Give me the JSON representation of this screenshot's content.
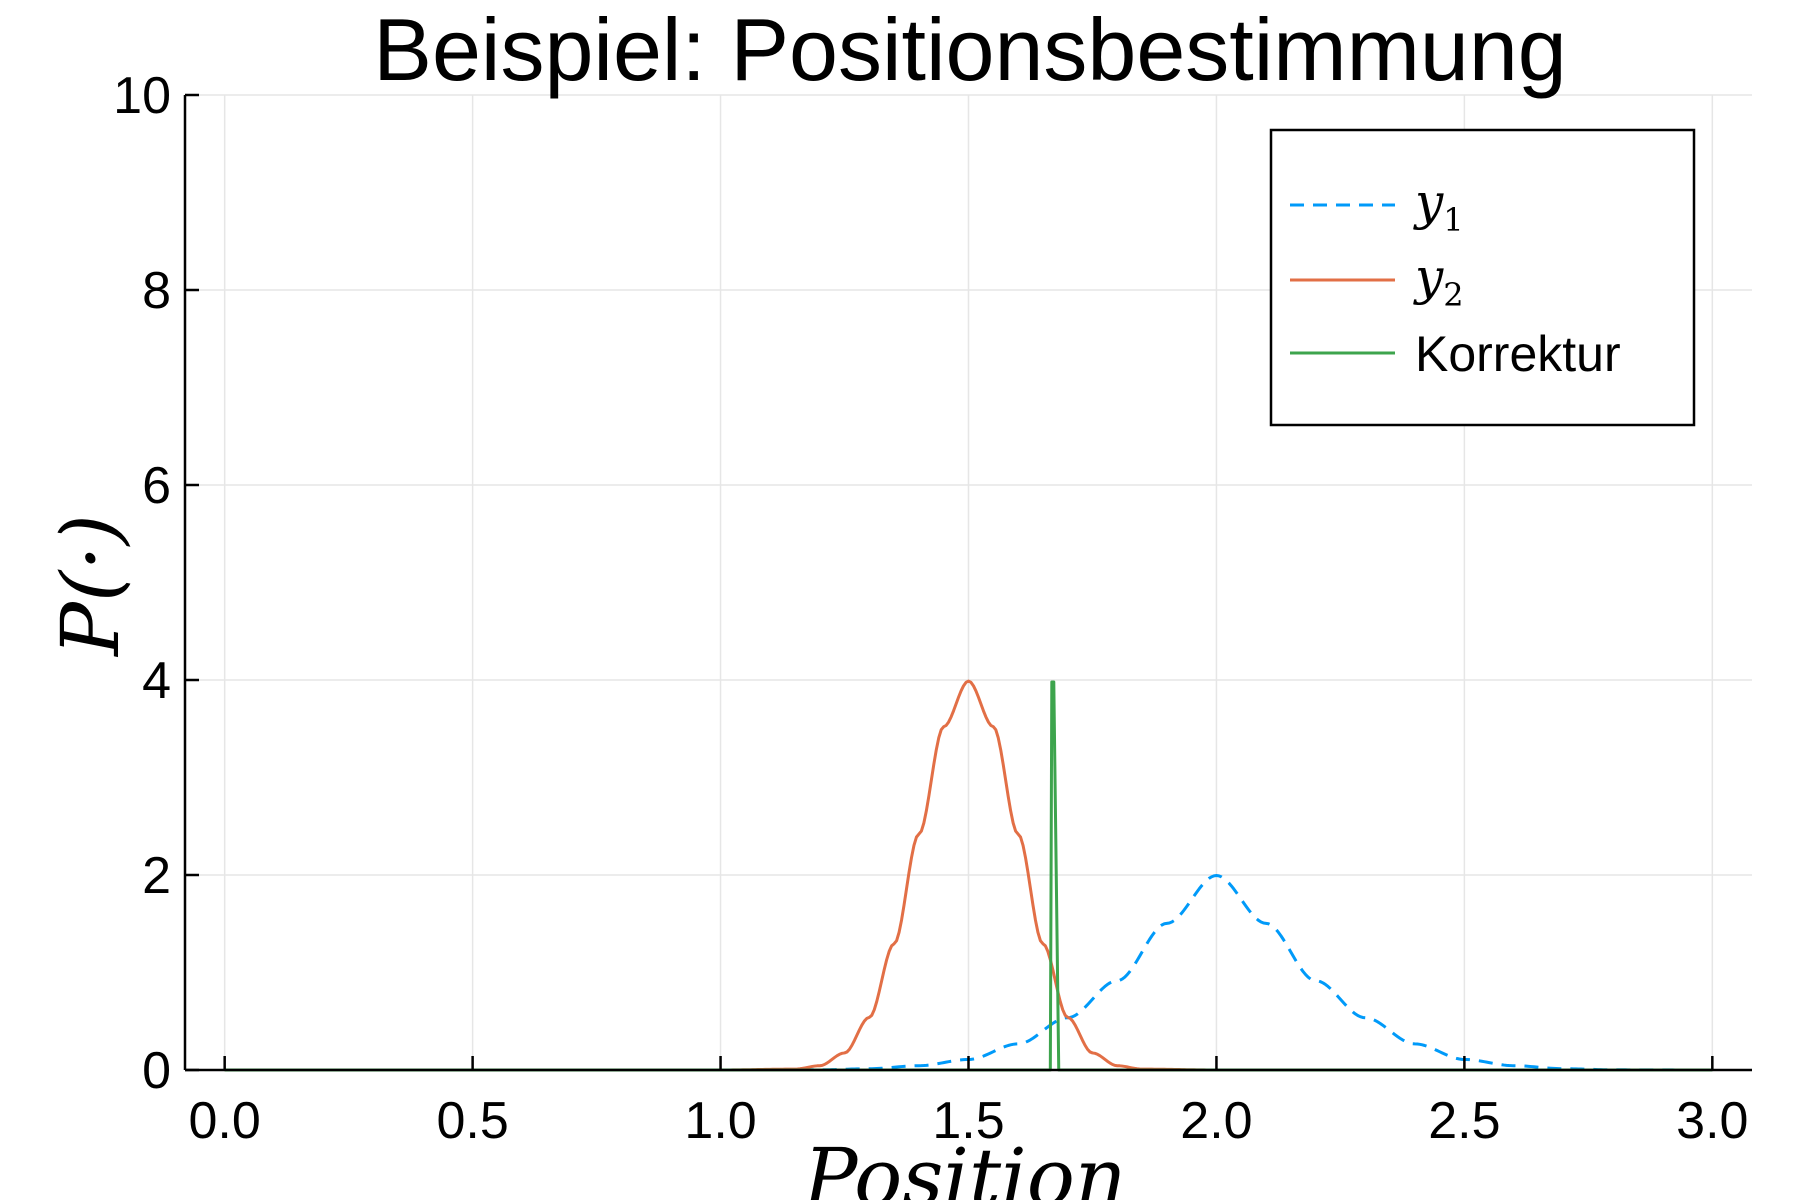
{
  "chart_data": {
    "type": "line",
    "title": "Beispiel: Positionsbestimmung",
    "xlabel": "Position",
    "ylabel": "P(·)",
    "xlim": [
      -0.08,
      3.08
    ],
    "ylim": [
      0,
      10
    ],
    "xticks": [
      0.0,
      0.5,
      1.0,
      1.5,
      2.0,
      2.5,
      3.0
    ],
    "xtick_labels": [
      "0.0",
      "0.5",
      "1.0",
      "1.5",
      "2.0",
      "2.5",
      "3.0"
    ],
    "yticks": [
      0,
      2,
      4,
      6,
      8,
      10
    ],
    "ytick_labels": [
      "0",
      "2",
      "4",
      "6",
      "8",
      "10"
    ],
    "grid": true,
    "legend_position": "top-right",
    "series": [
      {
        "name": "y1",
        "legend_base": "y",
        "legend_sub": "1",
        "color": "#009AF9",
        "dash": "dashed",
        "x": [
          0.0,
          0.5,
          1.0,
          1.2,
          1.3,
          1.4,
          1.5,
          1.6,
          1.7,
          1.8,
          1.9,
          2.0,
          2.1,
          2.2,
          2.3,
          2.4,
          2.5,
          2.6,
          2.7,
          2.8,
          3.0
        ],
        "y": [
          0.0,
          0.0,
          0.0,
          0.002,
          0.013,
          0.044,
          0.108,
          0.268,
          0.536,
          0.916,
          1.504,
          1.995,
          1.504,
          0.916,
          0.536,
          0.268,
          0.108,
          0.044,
          0.013,
          0.002,
          0.0
        ]
      },
      {
        "name": "y2",
        "legend_base": "y",
        "legend_sub": "2",
        "color": "#E26F46",
        "dash": "solid",
        "x": [
          0.0,
          1.0,
          1.15,
          1.2,
          1.25,
          1.3,
          1.35,
          1.4,
          1.45,
          1.5,
          1.55,
          1.6,
          1.65,
          1.7,
          1.75,
          1.8,
          1.85,
          2.0,
          3.0
        ],
        "y": [
          0.0,
          0.0,
          0.009,
          0.044,
          0.175,
          0.54,
          1.295,
          2.42,
          3.521,
          3.989,
          3.521,
          2.42,
          1.295,
          0.54,
          0.175,
          0.044,
          0.009,
          0.0,
          0.0
        ]
      },
      {
        "name": "Korrektur",
        "color": "#3DA44D",
        "dash": "solid",
        "x": [
          0.0,
          1.655,
          1.665,
          1.668,
          1.672,
          1.682,
          3.0
        ],
        "y": [
          0.0,
          0.0,
          0.0,
          3.98,
          3.98,
          0.0,
          0.0
        ]
      }
    ]
  }
}
